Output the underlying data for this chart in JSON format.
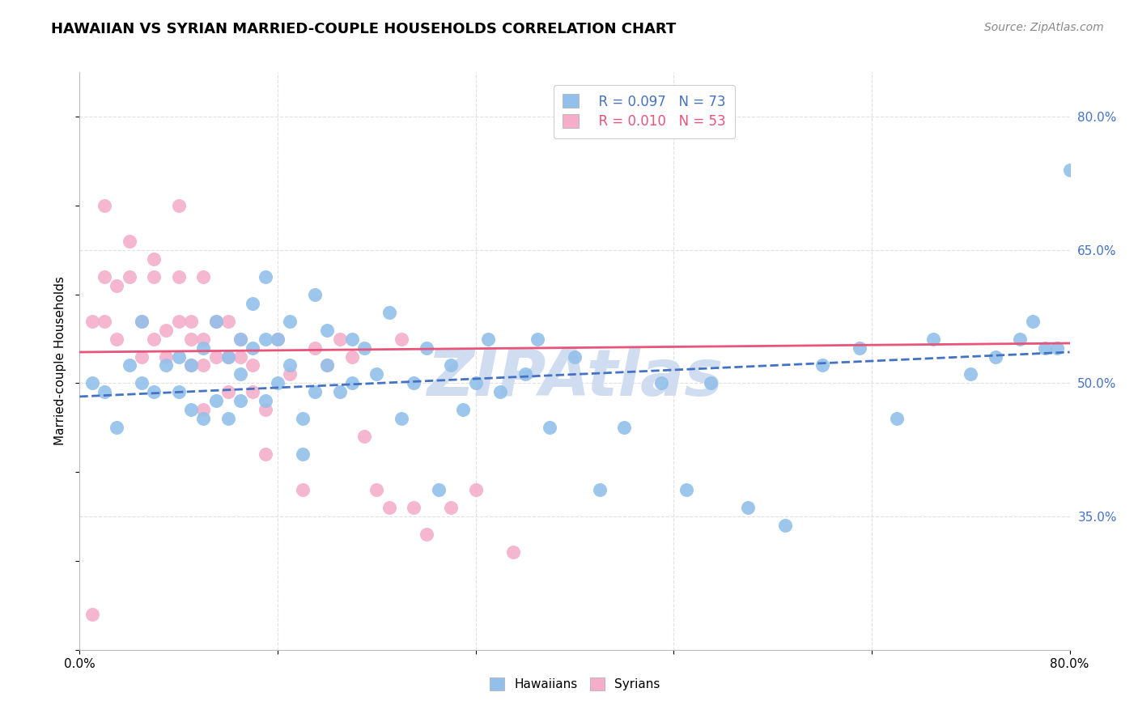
{
  "title": "HAWAIIAN VS SYRIAN MARRIED-COUPLE HOUSEHOLDS CORRELATION CHART",
  "source": "Source: ZipAtlas.com",
  "ylabel": "Married-couple Households",
  "x_min": 0.0,
  "x_max": 0.8,
  "y_min": 0.2,
  "y_max": 0.85,
  "x_ticks": [
    0.0,
    0.16,
    0.32,
    0.48,
    0.64,
    0.8
  ],
  "y_ticks": [
    0.35,
    0.5,
    0.65,
    0.8
  ],
  "y_tick_labels_right": [
    "35.0%",
    "50.0%",
    "65.0%",
    "80.0%"
  ],
  "legend_blue_r": "R = 0.097",
  "legend_blue_n": "N = 73",
  "legend_pink_r": "R = 0.010",
  "legend_pink_n": "N = 53",
  "hawaiians_label": "Hawaiians",
  "syrians_label": "Syrians",
  "blue_color": "#92C0EA",
  "pink_color": "#F4AECA",
  "blue_line_color": "#4472C4",
  "pink_line_color": "#E8547A",
  "watermark_color": "#D0DCF0",
  "background_color": "#FFFFFF",
  "grid_color": "#E0E0E0",
  "hawaiians_x": [
    0.01,
    0.02,
    0.03,
    0.04,
    0.05,
    0.05,
    0.06,
    0.07,
    0.08,
    0.08,
    0.09,
    0.09,
    0.1,
    0.1,
    0.11,
    0.11,
    0.12,
    0.12,
    0.13,
    0.13,
    0.13,
    0.14,
    0.14,
    0.15,
    0.15,
    0.15,
    0.16,
    0.16,
    0.17,
    0.17,
    0.18,
    0.18,
    0.19,
    0.19,
    0.2,
    0.2,
    0.21,
    0.22,
    0.22,
    0.23,
    0.24,
    0.25,
    0.26,
    0.27,
    0.28,
    0.29,
    0.3,
    0.31,
    0.32,
    0.33,
    0.34,
    0.36,
    0.37,
    0.38,
    0.4,
    0.42,
    0.44,
    0.47,
    0.49,
    0.51,
    0.54,
    0.57,
    0.6,
    0.63,
    0.66,
    0.69,
    0.72,
    0.74,
    0.76,
    0.77,
    0.78,
    0.79,
    0.8
  ],
  "hawaiians_y": [
    0.5,
    0.49,
    0.45,
    0.52,
    0.57,
    0.5,
    0.49,
    0.52,
    0.49,
    0.53,
    0.47,
    0.52,
    0.46,
    0.54,
    0.48,
    0.57,
    0.46,
    0.53,
    0.48,
    0.55,
    0.51,
    0.54,
    0.59,
    0.48,
    0.55,
    0.62,
    0.5,
    0.55,
    0.52,
    0.57,
    0.46,
    0.42,
    0.49,
    0.6,
    0.52,
    0.56,
    0.49,
    0.55,
    0.5,
    0.54,
    0.51,
    0.58,
    0.46,
    0.5,
    0.54,
    0.38,
    0.52,
    0.47,
    0.5,
    0.55,
    0.49,
    0.51,
    0.55,
    0.45,
    0.53,
    0.38,
    0.45,
    0.5,
    0.38,
    0.5,
    0.36,
    0.34,
    0.52,
    0.54,
    0.46,
    0.55,
    0.51,
    0.53,
    0.55,
    0.57,
    0.54,
    0.54,
    0.74
  ],
  "syrians_x": [
    0.01,
    0.01,
    0.02,
    0.02,
    0.02,
    0.03,
    0.03,
    0.04,
    0.04,
    0.05,
    0.05,
    0.06,
    0.06,
    0.06,
    0.07,
    0.07,
    0.08,
    0.08,
    0.08,
    0.09,
    0.09,
    0.09,
    0.1,
    0.1,
    0.1,
    0.1,
    0.11,
    0.11,
    0.12,
    0.12,
    0.12,
    0.13,
    0.13,
    0.14,
    0.14,
    0.15,
    0.15,
    0.16,
    0.17,
    0.18,
    0.19,
    0.2,
    0.21,
    0.22,
    0.23,
    0.24,
    0.25,
    0.26,
    0.27,
    0.28,
    0.3,
    0.32,
    0.35
  ],
  "syrians_y": [
    0.24,
    0.57,
    0.57,
    0.62,
    0.7,
    0.55,
    0.61,
    0.62,
    0.66,
    0.53,
    0.57,
    0.55,
    0.64,
    0.62,
    0.53,
    0.56,
    0.57,
    0.62,
    0.7,
    0.52,
    0.55,
    0.57,
    0.47,
    0.52,
    0.55,
    0.62,
    0.53,
    0.57,
    0.49,
    0.53,
    0.57,
    0.53,
    0.55,
    0.49,
    0.52,
    0.42,
    0.47,
    0.55,
    0.51,
    0.38,
    0.54,
    0.52,
    0.55,
    0.53,
    0.44,
    0.38,
    0.36,
    0.55,
    0.36,
    0.33,
    0.36,
    0.38,
    0.31
  ],
  "blue_trend_x0": 0.0,
  "blue_trend_y0": 0.485,
  "blue_trend_x1": 0.8,
  "blue_trend_y1": 0.535,
  "pink_trend_x0": 0.0,
  "pink_trend_y0": 0.535,
  "pink_trend_x1": 0.8,
  "pink_trend_y1": 0.545
}
